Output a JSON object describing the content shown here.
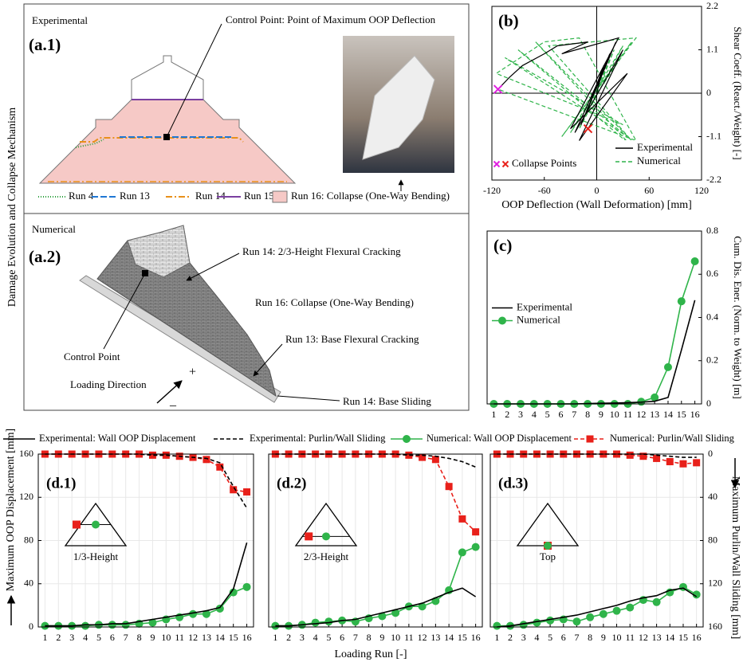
{
  "side_label": "Damage Evolution and Collapse Mechanism",
  "panel_a1": {
    "heading": "Experimental",
    "label": "(a.1)",
    "control_point": "Control Point: Point of Maximum OOP Deflection",
    "legend": [
      "Run 4",
      "Run 13",
      "Run 14",
      "Run 15",
      "Run 16: Collapse (One-Way Bending)"
    ]
  },
  "panel_a2": {
    "heading": "Numerical",
    "label": "(a.2)",
    "annotations": [
      "Run 14: 2/3-Height Flexural Cracking",
      "Run 16: Collapse (One-Way Bending)",
      "Run 13: Base Flexural Cracking",
      "Control Point",
      "Loading Direction",
      "Run 14: Base Sliding"
    ],
    "plus": "+",
    "minus": "–"
  },
  "d_panels": {
    "x_label": "Loading Run [-]",
    "y_label": "Maximum OOP Displacement [mm]",
    "y2_label": "Maximum Purlin/Wall Sliding [mm]"
  },
  "chart_data": [
    {
      "type": "line",
      "label": "(b)",
      "x_label": "OOP Deflection (Wall Deformation) [mm]",
      "y_label": "Shear Coeff. (React./Weight) [-]",
      "xlim": [
        -120,
        120
      ],
      "xticks": [
        -120,
        -60,
        0,
        60,
        120
      ],
      "ylim": [
        -2.2,
        2.2
      ],
      "yticks": [
        -2.2,
        -1.1,
        0,
        1.1,
        2.2
      ],
      "yaxis": "right",
      "legend": "lower right",
      "series": [
        {
          "name": "Experimental",
          "color": "#000000",
          "x": [
            0,
            8,
            -12,
            15,
            -18,
            22,
            -25,
            30,
            -20,
            35,
            -30,
            25,
            -40,
            -10,
            -45,
            -60,
            -85,
            -100,
            -113
          ],
          "values": [
            0,
            0.7,
            -0.5,
            1.0,
            -0.8,
            1.3,
            -1.0,
            1.1,
            -1.2,
            0.5,
            -0.9,
            1.4,
            1.0,
            1.3,
            1.2,
            1.0,
            0.7,
            0.4,
            0.1
          ]
        },
        {
          "name": "Numerical",
          "color": "#2fb44a",
          "dash": true,
          "x": [
            0,
            20,
            -20,
            30,
            -30,
            40,
            -40,
            45,
            -55,
            40,
            -70,
            38,
            -90,
            35,
            -105,
            30,
            -115,
            -60,
            -20,
            45,
            -113
          ],
          "values": [
            0,
            1.1,
            -0.9,
            1.2,
            -1.0,
            1.3,
            -1.1,
            1.4,
            1.2,
            -1.2,
            1.3,
            -1.3,
            1.1,
            -1.1,
            0.9,
            -0.8,
            0.5,
            1.3,
            1.4,
            -1.2,
            0.1
          ]
        }
      ],
      "collapse_points": {
        "label": "Collapse Points",
        "points": [
          {
            "x": -113,
            "y": 0.1,
            "color": "#e020e0"
          },
          {
            "x": -10,
            "y": -0.9,
            "color": "#e8201a"
          }
        ]
      }
    },
    {
      "type": "line",
      "label": "(c)",
      "y_label": "Cum. Dis. Ener. (Norm. to Weight) [m]",
      "x": [
        1,
        2,
        3,
        4,
        5,
        6,
        7,
        8,
        9,
        10,
        11,
        12,
        13,
        14,
        15,
        16
      ],
      "xlim": [
        0.5,
        16.5
      ],
      "xticks": [
        1,
        2,
        3,
        4,
        5,
        6,
        7,
        8,
        9,
        10,
        11,
        12,
        13,
        14,
        15,
        16
      ],
      "ylim": [
        0,
        0.8
      ],
      "yticks": [
        0,
        0.2,
        0.4,
        0.6,
        0.8
      ],
      "yaxis": "right",
      "legend": "center left",
      "series": [
        {
          "name": "Experimental",
          "color": "#000000",
          "values": [
            0,
            0,
            0,
            0,
            0,
            0,
            0,
            0.002,
            0.003,
            0.004,
            0.006,
            0.008,
            0.012,
            0.03,
            0.25,
            0.48
          ]
        },
        {
          "name": "Numerical",
          "color": "#2fb44a",
          "marker": "circle",
          "values": [
            0,
            0,
            0,
            0,
            0,
            0,
            0,
            0,
            0,
            0,
            0,
            0.01,
            0.03,
            0.17,
            0.475,
            0.66
          ]
        }
      ]
    },
    {
      "type": "line",
      "label": "(d.1)",
      "inset_label": "1/3-Height",
      "legend": "above",
      "x": [
        1,
        2,
        3,
        4,
        5,
        6,
        7,
        8,
        9,
        10,
        11,
        12,
        13,
        14,
        15,
        16
      ],
      "xlim": [
        0.5,
        16.5
      ],
      "xticks": [
        1,
        2,
        3,
        4,
        5,
        6,
        7,
        8,
        9,
        10,
        11,
        12,
        13,
        14,
        15,
        16
      ],
      "ylim": [
        0,
        160
      ],
      "yticks": [
        0,
        40,
        80,
        120,
        160
      ],
      "y2lim": [
        160,
        0
      ],
      "grid": true,
      "series": [
        {
          "name": "Experimental: Wall OOP Displacement",
          "color": "#000000",
          "values": [
            1,
            1,
            1,
            2,
            2,
            3,
            3,
            5,
            7,
            9,
            11,
            13,
            15,
            18,
            35,
            78
          ]
        },
        {
          "name": "Experimental: Purlin/Wall Sliding",
          "color": "#000000",
          "dash": true,
          "axis": "y2",
          "values": [
            0,
            0,
            0,
            0,
            0,
            0,
            0,
            0,
            1,
            1,
            2,
            3,
            4,
            8,
            30,
            50
          ]
        },
        {
          "name": "Numerical: Wall OOP Displacement",
          "color": "#2fb44a",
          "marker": "circle",
          "values": [
            1,
            1,
            1,
            1,
            2,
            2,
            2,
            3,
            4,
            7,
            9,
            12,
            12,
            17,
            32,
            37
          ]
        },
        {
          "name": "Numerical: Purlin/Wall Sliding",
          "color": "#e8201a",
          "dash": true,
          "marker": "square",
          "axis": "y2",
          "values": [
            0,
            0,
            0,
            0,
            0,
            0,
            0,
            0,
            1,
            1,
            2,
            3,
            5,
            12,
            33,
            35
          ]
        }
      ]
    },
    {
      "type": "line",
      "label": "(d.2)",
      "inset_label": "2/3-Height",
      "x": [
        1,
        2,
        3,
        4,
        5,
        6,
        7,
        8,
        9,
        10,
        11,
        12,
        13,
        14,
        15,
        16
      ],
      "xlim": [
        0.5,
        16.5
      ],
      "xticks": [
        1,
        2,
        3,
        4,
        5,
        6,
        7,
        8,
        9,
        10,
        11,
        12,
        13,
        14,
        15,
        16
      ],
      "ylim": [
        0,
        160
      ],
      "y2lim": [
        160,
        0
      ],
      "grid": true,
      "series": [
        {
          "color": "#000000",
          "values": [
            1,
            1,
            2,
            3,
            4,
            6,
            7,
            10,
            13,
            16,
            19,
            22,
            27,
            32,
            36,
            28
          ]
        },
        {
          "color": "#000000",
          "dash": true,
          "axis": "y2",
          "values": [
            0,
            0,
            0,
            0,
            0,
            0,
            0,
            0,
            0,
            0,
            1,
            1,
            2,
            4,
            7,
            12
          ]
        },
        {
          "color": "#2fb44a",
          "marker": "circle",
          "values": [
            1,
            1,
            2,
            4,
            5,
            6,
            5,
            8,
            10,
            13,
            19,
            19,
            24,
            34,
            69,
            74
          ]
        },
        {
          "color": "#e8201a",
          "dash": true,
          "marker": "square",
          "axis": "y2",
          "values": [
            0,
            0,
            0,
            0,
            0,
            0,
            0,
            0,
            0,
            0,
            1,
            3,
            5,
            30,
            60,
            72
          ]
        }
      ]
    },
    {
      "type": "line",
      "label": "(d.3)",
      "inset_label": "Top",
      "x": [
        1,
        2,
        3,
        4,
        5,
        6,
        7,
        8,
        9,
        10,
        11,
        12,
        13,
        14,
        15,
        16
      ],
      "xlim": [
        0.5,
        16.5
      ],
      "xticks": [
        1,
        2,
        3,
        4,
        5,
        6,
        7,
        8,
        9,
        10,
        11,
        12,
        13,
        14,
        15,
        16
      ],
      "ylim": [
        0,
        160
      ],
      "y2lim": [
        160,
        0
      ],
      "y2ticks": [
        0,
        40,
        80,
        120,
        160
      ],
      "grid": true,
      "series": [
        {
          "color": "#000000",
          "values": [
            0,
            1,
            3,
            5,
            7,
            9,
            11,
            14,
            17,
            20,
            24,
            27,
            29,
            34,
            36,
            28
          ]
        },
        {
          "color": "#000000",
          "dash": true,
          "axis": "y2",
          "values": [
            0,
            0,
            0,
            0,
            0,
            0,
            0,
            0,
            0,
            0,
            0,
            0,
            1,
            2,
            3,
            3
          ]
        },
        {
          "color": "#2fb44a",
          "marker": "circle",
          "values": [
            1,
            1,
            2,
            4,
            6,
            7,
            5,
            9,
            12,
            15,
            18,
            25,
            23,
            32,
            37,
            30
          ]
        },
        {
          "color": "#e8201a",
          "dash": true,
          "marker": "square",
          "axis": "y2",
          "values": [
            0,
            0,
            0,
            0,
            0,
            0,
            0,
            0,
            0,
            0,
            1,
            2,
            4,
            7,
            9,
            8
          ]
        }
      ]
    }
  ]
}
